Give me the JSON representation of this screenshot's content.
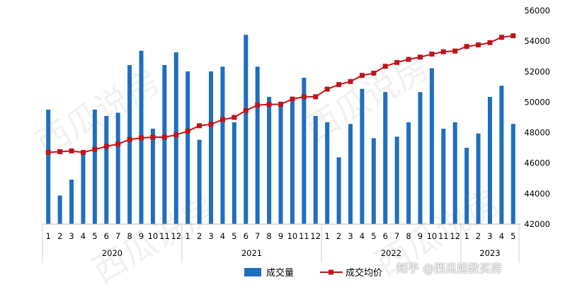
{
  "chart_data": {
    "type": "bar",
    "combo": "bar + line (right axis)",
    "title": "",
    "xlabel": "",
    "ylabel": "",
    "ylim_right": [
      42000,
      56000
    ],
    "y_ticks": [
      "42000",
      "44000",
      "46000",
      "48000",
      "50000",
      "52000",
      "54000",
      "56000"
    ],
    "years": [
      {
        "label": "2020",
        "months": [
          "1",
          "2",
          "3",
          "4",
          "5",
          "6",
          "7",
          "8",
          "9",
          "10",
          "11",
          "12"
        ]
      },
      {
        "label": "2021",
        "months": [
          "1",
          "2",
          "3",
          "4",
          "5",
          "6",
          "7",
          "8",
          "9",
          "10",
          "11",
          "12"
        ]
      },
      {
        "label": "2022",
        "months": [
          "1",
          "2",
          "3",
          "4",
          "5",
          "6",
          "7",
          "8",
          "9",
          "10",
          "11",
          "12"
        ]
      },
      {
        "label": "2023",
        "months": [
          "1",
          "2",
          "3",
          "4",
          "5"
        ]
      }
    ],
    "series": [
      {
        "name": "成交量",
        "type": "bar",
        "color": "#1f6fc0",
        "values_relative_height": [
          0.72,
          0.18,
          0.28,
          0.46,
          0.72,
          0.68,
          0.7,
          1.0,
          1.09,
          0.6,
          1.0,
          1.08,
          0.96,
          0.53,
          0.96,
          0.99,
          0.64,
          1.19,
          0.99,
          0.8,
          0.77,
          0.77,
          0.92,
          0.68,
          0.64,
          0.42,
          0.63,
          0.85,
          0.54,
          0.83,
          0.55,
          0.64,
          0.83,
          0.98,
          0.6,
          0.64,
          0.48,
          0.57,
          0.8,
          0.87,
          0.63
        ]
      },
      {
        "name": "成交均价",
        "type": "line",
        "color": "#c0141b",
        "values": [
          46700,
          46750,
          46800,
          46700,
          46900,
          47100,
          47250,
          47550,
          47650,
          47700,
          47700,
          47850,
          48100,
          48450,
          48550,
          48850,
          49000,
          49450,
          49800,
          49850,
          49850,
          50200,
          50350,
          50350,
          50850,
          51150,
          51350,
          51750,
          51900,
          52350,
          52600,
          52800,
          52950,
          53150,
          53300,
          53350,
          53650,
          53750,
          53900,
          54250,
          54350
        ]
      }
    ],
    "legend_position": "bottom"
  },
  "watermark": {
    "text": "西瓜说房"
  },
  "credit": {
    "text": "知乎 @西瓜姐教买房"
  }
}
